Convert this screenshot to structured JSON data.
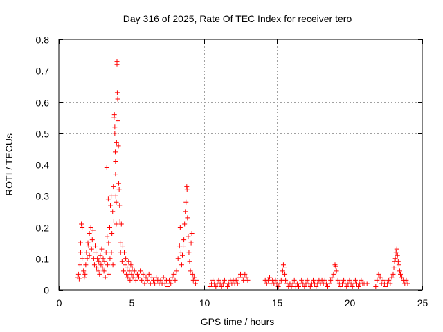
{
  "chart_data": {
    "type": "scatter",
    "title": "Day 316 of 2025, Rate Of TEC Index for receiver tero",
    "xlabel": "GPS time / hours",
    "ylabel": "ROTI / TECUs",
    "xlim": [
      0,
      25
    ],
    "ylim": [
      0,
      0.8
    ],
    "xticks": [
      0,
      5,
      10,
      15,
      20,
      25
    ],
    "yticks": [
      0,
      0.1,
      0.2,
      0.3,
      0.4,
      0.5,
      0.6,
      0.7,
      0.8
    ],
    "xtick_labels": [
      "0",
      "5",
      "10",
      "15",
      "20",
      "25"
    ],
    "ytick_labels": [
      "0",
      "0.1",
      "0.2",
      "0.3",
      "0.4",
      "0.5",
      "0.6",
      "0.7",
      "0.8"
    ],
    "grid": true,
    "marker": "+",
    "color": "#ff0000",
    "series": [
      {
        "name": "ROTI",
        "points": [
          [
            1.3,
            0.04
          ],
          [
            1.35,
            0.05
          ],
          [
            1.4,
            0.035
          ],
          [
            1.45,
            0.08
          ],
          [
            1.5,
            0.12
          ],
          [
            1.5,
            0.15
          ],
          [
            1.55,
            0.21
          ],
          [
            1.6,
            0.2
          ],
          [
            1.6,
            0.1
          ],
          [
            1.7,
            0.06
          ],
          [
            1.75,
            0.04
          ],
          [
            1.8,
            0.05
          ],
          [
            1.85,
            0.08
          ],
          [
            1.9,
            0.12
          ],
          [
            1.95,
            0.1
          ],
          [
            2.0,
            0.15
          ],
          [
            2.05,
            0.14
          ],
          [
            2.1,
            0.18
          ],
          [
            2.1,
            0.11
          ],
          [
            2.2,
            0.2
          ],
          [
            2.25,
            0.13
          ],
          [
            2.3,
            0.16
          ],
          [
            2.35,
            0.19
          ],
          [
            2.4,
            0.1
          ],
          [
            2.45,
            0.08
          ],
          [
            2.5,
            0.14
          ],
          [
            2.55,
            0.12
          ],
          [
            2.6,
            0.07
          ],
          [
            2.65,
            0.1
          ],
          [
            2.7,
            0.06
          ],
          [
            2.75,
            0.09
          ],
          [
            2.8,
            0.05
          ],
          [
            2.85,
            0.11
          ],
          [
            2.9,
            0.08
          ],
          [
            2.95,
            0.13
          ],
          [
            3.0,
            0.07
          ],
          [
            3.05,
            0.1
          ],
          [
            3.1,
            0.06
          ],
          [
            3.15,
            0.09
          ],
          [
            3.2,
            0.04
          ],
          [
            3.25,
            0.12
          ],
          [
            3.3,
            0.39
          ],
          [
            3.32,
            0.17
          ],
          [
            3.35,
            0.08
          ],
          [
            3.4,
            0.29
          ],
          [
            3.42,
            0.15
          ],
          [
            3.45,
            0.05
          ],
          [
            3.5,
            0.2
          ],
          [
            3.52,
            0.1
          ],
          [
            3.55,
            0.27
          ],
          [
            3.6,
            0.3
          ],
          [
            3.62,
            0.12
          ],
          [
            3.65,
            0.18
          ],
          [
            3.7,
            0.25
          ],
          [
            3.72,
            0.08
          ],
          [
            3.75,
            0.33
          ],
          [
            3.78,
            0.22
          ],
          [
            3.8,
            0.55
          ],
          [
            3.82,
            0.56
          ],
          [
            3.85,
            0.52
          ],
          [
            3.85,
            0.5
          ],
          [
            3.88,
            0.44
          ],
          [
            3.9,
            0.41
          ],
          [
            3.9,
            0.37
          ],
          [
            3.92,
            0.3
          ],
          [
            3.95,
            0.28
          ],
          [
            3.95,
            0.21
          ],
          [
            3.97,
            0.47
          ],
          [
            4.0,
            0.73
          ],
          [
            4.0,
            0.72
          ],
          [
            4.02,
            0.63
          ],
          [
            4.05,
            0.61
          ],
          [
            4.07,
            0.54
          ],
          [
            4.1,
            0.46
          ],
          [
            4.12,
            0.34
          ],
          [
            4.15,
            0.32
          ],
          [
            4.18,
            0.27
          ],
          [
            4.2,
            0.22
          ],
          [
            4.22,
            0.15
          ],
          [
            4.25,
            0.12
          ],
          [
            4.3,
            0.21
          ],
          [
            4.35,
            0.09
          ],
          [
            4.4,
            0.14
          ],
          [
            4.45,
            0.06
          ],
          [
            4.5,
            0.12
          ],
          [
            4.55,
            0.08
          ],
          [
            4.6,
            0.1
          ],
          [
            4.65,
            0.05
          ],
          [
            4.7,
            0.07
          ],
          [
            4.75,
            0.04
          ],
          [
            4.8,
            0.09
          ],
          [
            4.85,
            0.06
          ],
          [
            4.9,
            0.03
          ],
          [
            4.95,
            0.08
          ],
          [
            5.0,
            0.05
          ],
          [
            5.05,
            0.07
          ],
          [
            5.1,
            0.04
          ],
          [
            5.2,
            0.06
          ],
          [
            5.3,
            0.03
          ],
          [
            5.4,
            0.05
          ],
          [
            5.5,
            0.04
          ],
          [
            5.6,
            0.06
          ],
          [
            5.7,
            0.03
          ],
          [
            5.8,
            0.05
          ],
          [
            5.9,
            0.02
          ],
          [
            6.0,
            0.04
          ],
          [
            6.1,
            0.03
          ],
          [
            6.2,
            0.05
          ],
          [
            6.3,
            0.02
          ],
          [
            6.4,
            0.04
          ],
          [
            6.5,
            0.03
          ],
          [
            6.6,
            0.02
          ],
          [
            6.7,
            0.04
          ],
          [
            6.8,
            0.03
          ],
          [
            6.9,
            0.02
          ],
          [
            7.0,
            0.03
          ],
          [
            7.1,
            0.02
          ],
          [
            7.2,
            0.04
          ],
          [
            7.3,
            0.02
          ],
          [
            7.4,
            0.03
          ],
          [
            7.5,
            0.01
          ],
          [
            7.6,
            0.03
          ],
          [
            7.7,
            0.02
          ],
          [
            7.8,
            0.04
          ],
          [
            7.9,
            0.05
          ],
          [
            8.0,
            0.03
          ],
          [
            8.1,
            0.06
          ],
          [
            8.2,
            0.1
          ],
          [
            8.3,
            0.14
          ],
          [
            8.35,
            0.2
          ],
          [
            8.4,
            0.12
          ],
          [
            8.45,
            0.08
          ],
          [
            8.5,
            0.11
          ],
          [
            8.55,
            0.14
          ],
          [
            8.6,
            0.16
          ],
          [
            8.65,
            0.21
          ],
          [
            8.7,
            0.25
          ],
          [
            8.75,
            0.28
          ],
          [
            8.8,
            0.33
          ],
          [
            8.82,
            0.32
          ],
          [
            8.85,
            0.23
          ],
          [
            8.9,
            0.17
          ],
          [
            8.95,
            0.12
          ],
          [
            9.0,
            0.09
          ],
          [
            9.05,
            0.06
          ],
          [
            9.1,
            0.15
          ],
          [
            9.15,
            0.18
          ],
          [
            9.2,
            0.05
          ],
          [
            9.25,
            0.03
          ],
          [
            9.3,
            0.04
          ],
          [
            9.4,
            0.02
          ],
          [
            9.5,
            0.03
          ],
          [
            10.4,
            0.01
          ],
          [
            10.5,
            0.02
          ],
          [
            10.6,
            0.03
          ],
          [
            10.7,
            0.02
          ],
          [
            10.8,
            0.01
          ],
          [
            10.9,
            0.02
          ],
          [
            11.0,
            0.03
          ],
          [
            11.1,
            0.02
          ],
          [
            11.2,
            0.01
          ],
          [
            11.3,
            0.02
          ],
          [
            11.4,
            0.03
          ],
          [
            11.5,
            0.02
          ],
          [
            11.6,
            0.01
          ],
          [
            11.7,
            0.02
          ],
          [
            11.8,
            0.03
          ],
          [
            11.9,
            0.02
          ],
          [
            12.0,
            0.03
          ],
          [
            12.1,
            0.02
          ],
          [
            12.2,
            0.03
          ],
          [
            12.3,
            0.02
          ],
          [
            12.4,
            0.04
          ],
          [
            12.5,
            0.05
          ],
          [
            12.6,
            0.04
          ],
          [
            12.7,
            0.03
          ],
          [
            12.8,
            0.05
          ],
          [
            12.9,
            0.04
          ],
          [
            13.0,
            0.03
          ],
          [
            14.2,
            0.03
          ],
          [
            14.3,
            0.02
          ],
          [
            14.4,
            0.03
          ],
          [
            14.5,
            0.04
          ],
          [
            14.6,
            0.02
          ],
          [
            14.7,
            0.03
          ],
          [
            14.8,
            0.02
          ],
          [
            14.9,
            0.03
          ],
          [
            15.0,
            0.02
          ],
          [
            15.1,
            0.01
          ],
          [
            15.2,
            0.02
          ],
          [
            15.3,
            0.03
          ],
          [
            15.4,
            0.06
          ],
          [
            15.45,
            0.08
          ],
          [
            15.5,
            0.07
          ],
          [
            15.55,
            0.05
          ],
          [
            15.6,
            0.03
          ],
          [
            15.7,
            0.02
          ],
          [
            15.8,
            0.01
          ],
          [
            15.9,
            0.02
          ],
          [
            16.0,
            0.01
          ],
          [
            16.1,
            0.02
          ],
          [
            16.2,
            0.03
          ],
          [
            16.3,
            0.01
          ],
          [
            16.4,
            0.02
          ],
          [
            16.5,
            0.01
          ],
          [
            16.6,
            0.02
          ],
          [
            16.7,
            0.03
          ],
          [
            16.8,
            0.02
          ],
          [
            16.9,
            0.01
          ],
          [
            17.0,
            0.02
          ],
          [
            17.1,
            0.03
          ],
          [
            17.2,
            0.02
          ],
          [
            17.3,
            0.01
          ],
          [
            17.4,
            0.02
          ],
          [
            17.5,
            0.03
          ],
          [
            17.6,
            0.02
          ],
          [
            17.7,
            0.01
          ],
          [
            17.8,
            0.02
          ],
          [
            17.9,
            0.03
          ],
          [
            18.0,
            0.02
          ],
          [
            18.1,
            0.03
          ],
          [
            18.2,
            0.02
          ],
          [
            18.3,
            0.03
          ],
          [
            18.4,
            0.02
          ],
          [
            18.5,
            0.01
          ],
          [
            18.6,
            0.02
          ],
          [
            18.7,
            0.03
          ],
          [
            18.8,
            0.04
          ],
          [
            18.9,
            0.05
          ],
          [
            19.0,
            0.08
          ],
          [
            19.05,
            0.075
          ],
          [
            19.1,
            0.06
          ],
          [
            19.2,
            0.03
          ],
          [
            19.3,
            0.02
          ],
          [
            19.4,
            0.01
          ],
          [
            19.5,
            0.02
          ],
          [
            19.6,
            0.03
          ],
          [
            19.7,
            0.02
          ],
          [
            19.8,
            0.01
          ],
          [
            19.9,
            0.02
          ],
          [
            20.0,
            0.03
          ],
          [
            20.1,
            0.02
          ],
          [
            20.2,
            0.01
          ],
          [
            20.3,
            0.02
          ],
          [
            20.4,
            0.03
          ],
          [
            20.5,
            0.02
          ],
          [
            20.6,
            0.01
          ],
          [
            20.7,
            0.02
          ],
          [
            20.8,
            0.03
          ],
          [
            20.9,
            0.02
          ],
          [
            21.0,
            0.02
          ],
          [
            21.2,
            0.02
          ],
          [
            21.8,
            0.01
          ],
          [
            21.9,
            0.03
          ],
          [
            22.0,
            0.05
          ],
          [
            22.1,
            0.04
          ],
          [
            22.2,
            0.02
          ],
          [
            22.3,
            0.03
          ],
          [
            22.4,
            0.02
          ],
          [
            22.5,
            0.01
          ],
          [
            22.6,
            0.02
          ],
          [
            22.7,
            0.03
          ],
          [
            22.8,
            0.02
          ],
          [
            22.9,
            0.04
          ],
          [
            23.0,
            0.05
          ],
          [
            23.05,
            0.07
          ],
          [
            23.1,
            0.09
          ],
          [
            23.15,
            0.1
          ],
          [
            23.2,
            0.12
          ],
          [
            23.25,
            0.13
          ],
          [
            23.3,
            0.11
          ],
          [
            23.35,
            0.09
          ],
          [
            23.4,
            0.08
          ],
          [
            23.45,
            0.06
          ],
          [
            23.5,
            0.05
          ],
          [
            23.6,
            0.04
          ],
          [
            23.7,
            0.03
          ],
          [
            23.8,
            0.02
          ],
          [
            23.9,
            0.03
          ],
          [
            24.0,
            0.02
          ]
        ]
      }
    ]
  }
}
